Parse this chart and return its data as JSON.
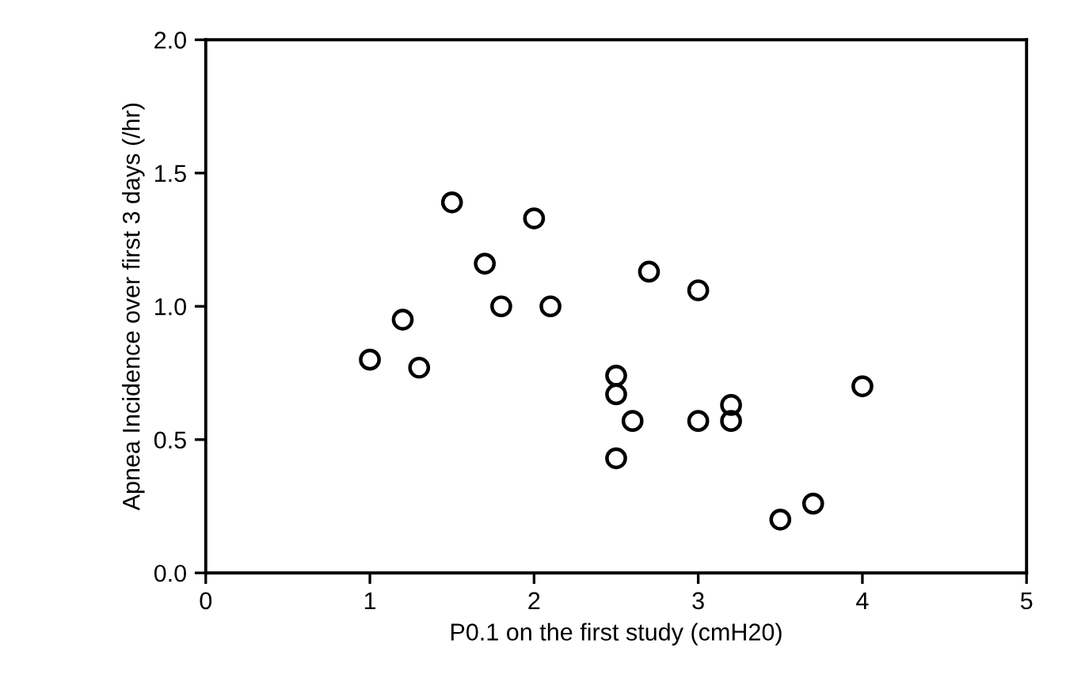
{
  "chart_data": {
    "type": "scatter",
    "xlabel": "P0.1 on the first study (cmH20)",
    "ylabel": "Apnea Incidence over first 3 days (/hr)",
    "x": [
      1.0,
      1.2,
      1.3,
      1.5,
      1.7,
      1.8,
      2.0,
      2.1,
      2.5,
      2.5,
      2.5,
      2.6,
      2.7,
      3.0,
      3.0,
      3.2,
      3.2,
      3.5,
      3.7,
      4.0
    ],
    "series": [
      {
        "color": "#000000",
        "values": [
          0.8,
          0.95,
          0.77,
          1.39,
          1.16,
          1.0,
          1.33,
          1.0,
          0.74,
          0.67,
          0.43,
          0.57,
          1.13,
          1.06,
          0.57,
          0.63,
          0.57,
          0.2,
          0.26,
          0.7
        ]
      }
    ],
    "marker": "circle",
    "xlim": [
      0,
      5
    ],
    "xticks": [
      0,
      1,
      2,
      3,
      4,
      5
    ],
    "ylim": [
      0.0,
      2.0
    ],
    "yticks": [
      {
        "value": 0.0,
        "label": "0.0"
      },
      {
        "value": 0.5,
        "label": "0.5"
      },
      {
        "value": 1.0,
        "label": "1.0"
      },
      {
        "value": 1.5,
        "label": "1.5"
      },
      {
        "value": 2.0,
        "label": "2.0"
      }
    ],
    "grid": false
  }
}
